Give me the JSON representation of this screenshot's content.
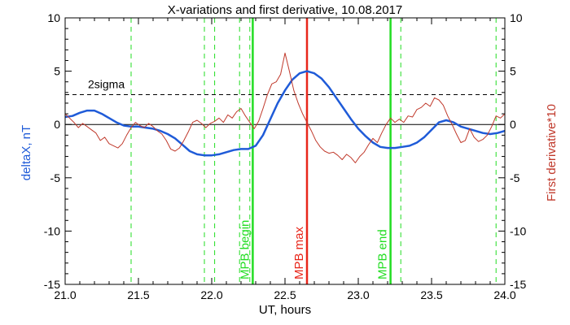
{
  "chart_data": {
    "type": "line",
    "title": "X-variations and first derivative, 10.08.2017",
    "xlabel": "UT, hours",
    "ylabel_left": "deltaX, nT",
    "ylabel_right": "First derivative*10",
    "xlim": [
      21.0,
      24.0
    ],
    "ylim": [
      -15,
      10
    ],
    "x_ticks": [
      "21.0",
      "21.5",
      "22.0",
      "22.5",
      "23.0",
      "23.5",
      "24.0"
    ],
    "y_ticks": [
      "10",
      "5",
      "0",
      "-5",
      "-10",
      "-15"
    ],
    "y_ticks_right": [
      "10",
      "5",
      "0",
      "-5",
      "-10",
      "-15"
    ],
    "grid": false,
    "colors": {
      "deltaX": "#1f5bd8",
      "derivative": "#c0392b",
      "mpb_boundary": "#22dd22",
      "mpb_max": "#e8261a",
      "reference": "#000000"
    },
    "series": [
      {
        "name": "deltaX, nT",
        "x": [
          21.0,
          21.05,
          21.1,
          21.15,
          21.2,
          21.25,
          21.3,
          21.35,
          21.4,
          21.45,
          21.5,
          21.55,
          21.6,
          21.65,
          21.7,
          21.75,
          21.8,
          21.85,
          21.9,
          21.95,
          22.0,
          22.05,
          22.1,
          22.15,
          22.2,
          22.25,
          22.3,
          22.35,
          22.4,
          22.45,
          22.5,
          22.55,
          22.6,
          22.65,
          22.7,
          22.75,
          22.8,
          22.85,
          22.9,
          22.95,
          23.0,
          23.05,
          23.1,
          23.15,
          23.2,
          23.25,
          23.3,
          23.35,
          23.4,
          23.45,
          23.5,
          23.55,
          23.6,
          23.65,
          23.7,
          23.75,
          23.8,
          23.85,
          23.9,
          23.95,
          24.0
        ],
        "values": [
          0.7,
          0.8,
          1.1,
          1.3,
          1.3,
          1.0,
          0.6,
          0.2,
          -0.1,
          -0.2,
          -0.2,
          -0.3,
          -0.4,
          -0.6,
          -0.9,
          -1.3,
          -1.9,
          -2.5,
          -2.8,
          -2.9,
          -2.9,
          -2.8,
          -2.6,
          -2.4,
          -2.3,
          -2.3,
          -2.0,
          -1.0,
          0.5,
          2.0,
          3.2,
          4.2,
          4.8,
          5.0,
          4.8,
          4.3,
          3.5,
          2.5,
          1.5,
          0.5,
          -0.4,
          -1.1,
          -1.7,
          -2.1,
          -2.2,
          -2.2,
          -2.1,
          -2.0,
          -1.7,
          -1.2,
          -0.5,
          0.2,
          0.4,
          0.2,
          -0.2,
          -0.4,
          -0.6,
          -0.8,
          -0.9,
          -0.8,
          -0.6
        ]
      },
      {
        "name": "First derivative*10",
        "x": [
          21.0,
          21.03,
          21.06,
          21.09,
          21.12,
          21.15,
          21.18,
          21.21,
          21.24,
          21.27,
          21.3,
          21.33,
          21.36,
          21.39,
          21.42,
          21.45,
          21.48,
          21.51,
          21.54,
          21.57,
          21.6,
          21.63,
          21.66,
          21.69,
          21.72,
          21.75,
          21.78,
          21.81,
          21.84,
          21.87,
          21.9,
          21.93,
          21.96,
          21.99,
          22.02,
          22.05,
          22.08,
          22.11,
          22.14,
          22.17,
          22.2,
          22.23,
          22.26,
          22.29,
          22.32,
          22.35,
          22.38,
          22.41,
          22.44,
          22.47,
          22.5,
          22.53,
          22.56,
          22.59,
          22.62,
          22.65,
          22.68,
          22.71,
          22.74,
          22.77,
          22.8,
          22.83,
          22.86,
          22.89,
          22.92,
          22.95,
          22.98,
          23.01,
          23.04,
          23.07,
          23.1,
          23.13,
          23.16,
          23.19,
          23.22,
          23.25,
          23.28,
          23.31,
          23.34,
          23.37,
          23.4,
          23.43,
          23.46,
          23.49,
          23.52,
          23.55,
          23.58,
          23.61,
          23.64,
          23.67,
          23.7,
          23.73,
          23.76,
          23.79,
          23.82,
          23.85,
          23.88,
          23.91,
          23.94,
          23.97,
          24.0
        ],
        "values": [
          1.0,
          0.6,
          0.2,
          -0.3,
          0.1,
          -0.2,
          -0.5,
          -0.8,
          -1.5,
          -1.2,
          -1.8,
          -2.0,
          -2.2,
          -1.8,
          -1.0,
          -0.3,
          0.2,
          -0.1,
          -0.3,
          0.1,
          -0.2,
          -0.6,
          -0.9,
          -1.5,
          -2.3,
          -2.5,
          -2.2,
          -1.5,
          -0.7,
          0.2,
          0.4,
          0.1,
          -0.3,
          0.1,
          0.3,
          0.6,
          0.2,
          0.9,
          0.6,
          1.2,
          1.5,
          0.8,
          0.2,
          -0.4,
          0.3,
          1.5,
          2.8,
          3.8,
          4.0,
          4.7,
          6.7,
          5.0,
          3.2,
          2.0,
          1.0,
          0.2,
          -0.6,
          -1.5,
          -2.1,
          -2.5,
          -2.7,
          -2.6,
          -2.9,
          -3.3,
          -2.8,
          -3.1,
          -3.6,
          -3.0,
          -2.6,
          -1.9,
          -1.3,
          -1.7,
          -0.8,
          0.0,
          0.6,
          0.2,
          0.5,
          0.2,
          0.8,
          0.7,
          1.4,
          1.6,
          2.0,
          1.7,
          2.5,
          2.3,
          1.8,
          0.8,
          0.0,
          -0.9,
          -1.7,
          -1.5,
          -0.4,
          -1.2,
          -1.6,
          -1.4,
          -1.0,
          -0.2,
          0.8,
          0.6,
          1.0
        ]
      }
    ],
    "reference_lines": {
      "zero": 0,
      "sigma2": 2.8,
      "sigma2_label": "2sigma"
    },
    "vertical_markers": [
      {
        "x": 22.28,
        "label": "MPB begin",
        "kind": "mpb_boundary"
      },
      {
        "x": 22.65,
        "label": "MPB max",
        "kind": "mpb_max"
      },
      {
        "x": 23.22,
        "label": "MPB end",
        "kind": "mpb_boundary"
      }
    ],
    "dashed_markers": [
      21.45,
      21.95,
      22.02,
      22.19,
      22.26,
      23.29,
      23.94
    ]
  }
}
